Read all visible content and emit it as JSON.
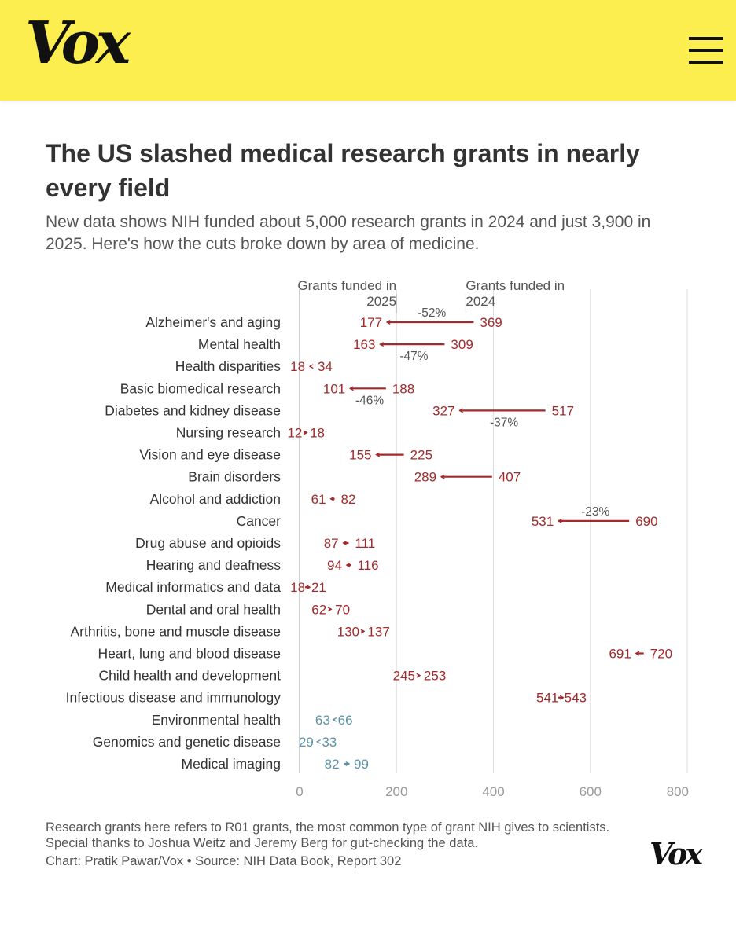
{
  "header": {
    "logo_text": "Vox",
    "menu_icon": "hamburger-menu-icon"
  },
  "title": "The US slashed medical research grants in nearly every field",
  "subtitle": "New data shows NIH funded about 5,000 research grants in 2024 and just 3,900 in 2025. Here's how the cuts broke down by area of medicine.",
  "chart_data": {
    "type": "arrow-dot",
    "xlim": [
      0,
      800
    ],
    "xticks": [
      0,
      200,
      400,
      600,
      800
    ],
    "legend_2025": "Grants funded in 2025",
    "legend_2024": "Grants funded in 2024",
    "colors": {
      "decrease": "#a32a2a",
      "increase": "#5b93a8",
      "axis": "#999999",
      "grid": "#dddddd"
    },
    "rows": [
      {
        "label": "Alzheimer's and aging",
        "v2024": 369,
        "v2025": 177,
        "pct": "-52%"
      },
      {
        "label": "Mental health",
        "v2024": 309,
        "v2025": 163,
        "pct": "-47%"
      },
      {
        "label": "Health disparities",
        "v2024": 34,
        "v2025": 18,
        "pct": ""
      },
      {
        "label": "Basic biomedical research",
        "v2024": 188,
        "v2025": 101,
        "pct": "-46%"
      },
      {
        "label": "Diabetes and kidney disease",
        "v2024": 517,
        "v2025": 327,
        "pct": "-37%"
      },
      {
        "label": "Nursing research",
        "v2024": 18,
        "v2025": 12,
        "pct": ""
      },
      {
        "label": "Vision and eye disease",
        "v2024": 225,
        "v2025": 155,
        "pct": ""
      },
      {
        "label": "Brain disorders",
        "v2024": 407,
        "v2025": 289,
        "pct": ""
      },
      {
        "label": "Alcohol and addiction",
        "v2024": 82,
        "v2025": 61,
        "pct": ""
      },
      {
        "label": "Cancer",
        "v2024": 690,
        "v2025": 531,
        "pct": "-23%"
      },
      {
        "label": "Drug abuse and opioids",
        "v2024": 111,
        "v2025": 87,
        "pct": ""
      },
      {
        "label": "Hearing and deafness",
        "v2024": 116,
        "v2025": 94,
        "pct": ""
      },
      {
        "label": "Medical informatics and data",
        "v2024": 21,
        "v2025": 18,
        "pct": ""
      },
      {
        "label": "Dental and oral health",
        "v2024": 70,
        "v2025": 62,
        "pct": ""
      },
      {
        "label": "Arthritis, bone and muscle disease",
        "v2024": 137,
        "v2025": 130,
        "pct": ""
      },
      {
        "label": "Heart, lung and blood disease",
        "v2024": 720,
        "v2025": 691,
        "pct": ""
      },
      {
        "label": "Child health and development",
        "v2024": 253,
        "v2025": 245,
        "pct": ""
      },
      {
        "label": "Infectious disease and immunology",
        "v2024": 543,
        "v2025": 541,
        "pct": ""
      },
      {
        "label": "Environmental health",
        "v2024": 63,
        "v2025": 66,
        "pct": ""
      },
      {
        "label": "Genomics and genetic disease",
        "v2024": 29,
        "v2025": 33,
        "pct": ""
      },
      {
        "label": "Medical imaging",
        "v2024": 82,
        "v2025": 99,
        "pct": ""
      }
    ]
  },
  "footer": {
    "note": "Research grants here refers to R01 grants, the most common type of grant NIH gives to scientists. Special thanks to Joshua Weitz and Jeremy Berg for gut-checking the data.",
    "credit": "Chart: Pratik Pawar/Vox • Source: NIH Data Book, Report 302",
    "logo_text": "Vox"
  }
}
